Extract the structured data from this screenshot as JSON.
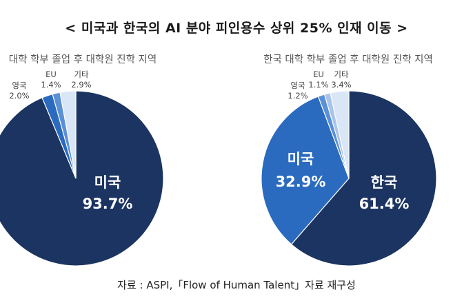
{
  "title": "< 미국과 한국의 AI 분야 피인용수 상위 25% 인재 이동 >",
  "source": "자료 : ASPI,「Flow of Human Talent」자료 재구성",
  "colors": {
    "navy": "#1c3461",
    "blue": "#2a6bbf",
    "mid_blue": "#5b8fd6",
    "light_blue": "#a9c4ea",
    "pale_blue": "#d9e6f6",
    "small_label": "#444444",
    "subtitle": "#555555"
  },
  "chart_data": [
    {
      "type": "pie",
      "title": "대학 학부 졸업 후 대학원 진학 지역",
      "slices": [
        {
          "label": "미국",
          "value": 93.7,
          "display": "93.7%",
          "color": "#1c3461"
        },
        {
          "label": "영국",
          "value": 2.0,
          "display": "2.0%",
          "color": "#2a6bbf"
        },
        {
          "label": "EU",
          "value": 1.4,
          "display": "1.4%",
          "color": "#5b8fd6"
        },
        {
          "label": "기타",
          "value": 2.9,
          "display": "2.9%",
          "color": "#d9e6f6"
        }
      ]
    },
    {
      "type": "pie",
      "title": "한국 대학 학부 졸업 후 대학원 진학 지역",
      "slices": [
        {
          "label": "한국",
          "value": 61.4,
          "display": "61.4%",
          "color": "#1c3461"
        },
        {
          "label": "미국",
          "value": 32.9,
          "display": "32.9%",
          "color": "#2a6bbf"
        },
        {
          "label": "영국",
          "value": 1.2,
          "display": "1.2%",
          "color": "#5b8fd6"
        },
        {
          "label": "EU",
          "value": 1.1,
          "display": "1.1%",
          "color": "#a9c4ea"
        },
        {
          "label": "기타",
          "value": 3.4,
          "display": "3.4%",
          "color": "#d9e6f6"
        }
      ]
    }
  ]
}
